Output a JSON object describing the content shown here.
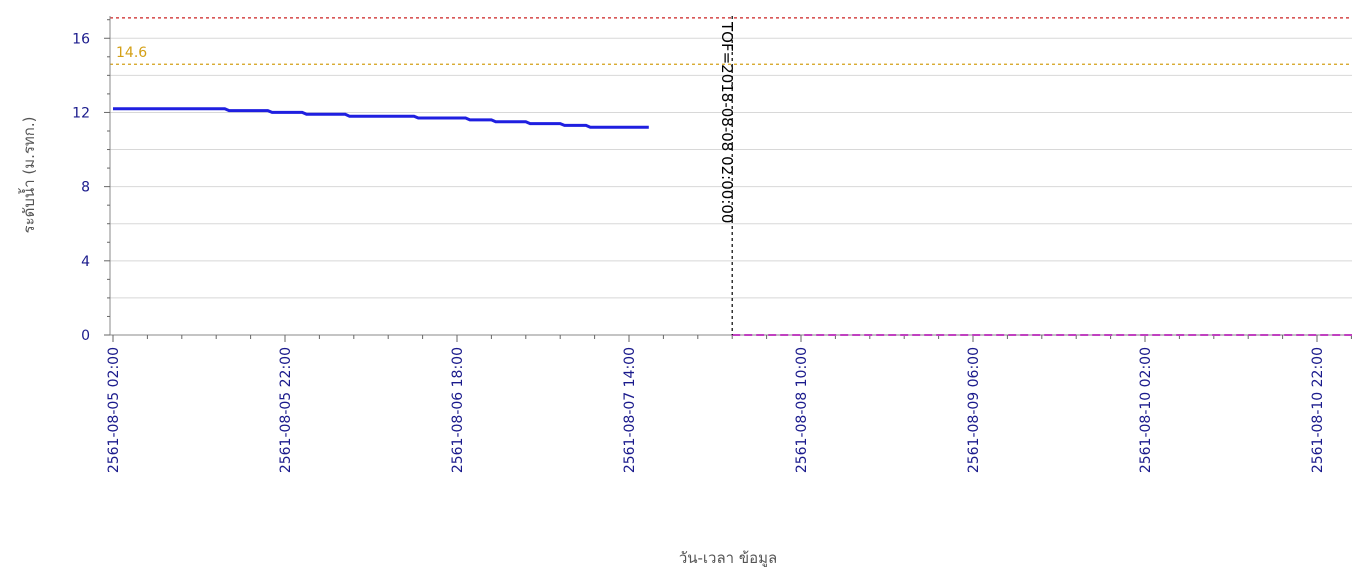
{
  "chart_data": {
    "type": "line",
    "ylabel": "ระดับน้ำ (ม.รทก.)",
    "xlabel": "วัน-เวลา ข้อมูล",
    "ylim": [
      0,
      17.2
    ],
    "yticks": [
      0,
      4,
      8,
      12,
      16
    ],
    "xlim_hours": [
      0,
      148
    ],
    "grid": true,
    "xticks": [
      {
        "hour": 0,
        "label": "2561-08-05 02:00"
      },
      {
        "hour": 20,
        "label": "2561-08-05 22:00"
      },
      {
        "hour": 40,
        "label": "2561-08-06 18:00"
      },
      {
        "hour": 60,
        "label": "2561-08-07 14:00"
      },
      {
        "hour": 80,
        "label": "2561-08-08 10:00"
      },
      {
        "hour": 100,
        "label": "2561-08-09 06:00"
      },
      {
        "hour": 120,
        "label": "2561-08-10 02:00"
      },
      {
        "hour": 140,
        "label": "2561-08-10 22:00"
      }
    ],
    "series": [
      {
        "color": "#1f1fe0",
        "points": [
          [
            0,
            12.2
          ],
          [
            13,
            12.2
          ],
          [
            13.5,
            12.1
          ],
          [
            18,
            12.1
          ],
          [
            18.5,
            12.0
          ],
          [
            22,
            12.0
          ],
          [
            22.5,
            11.9
          ],
          [
            27,
            11.9
          ],
          [
            27.5,
            11.8
          ],
          [
            35,
            11.8
          ],
          [
            35.5,
            11.7
          ],
          [
            41,
            11.7
          ],
          [
            41.5,
            11.6
          ],
          [
            44,
            11.6
          ],
          [
            44.5,
            11.5
          ],
          [
            48,
            11.5
          ],
          [
            48.5,
            11.4
          ],
          [
            52,
            11.4
          ],
          [
            52.5,
            11.3
          ],
          [
            55,
            11.3
          ],
          [
            55.5,
            11.2
          ],
          [
            62.3,
            11.2
          ]
        ]
      }
    ],
    "thresholds": [
      {
        "value": 17.1,
        "color": "#cc2222",
        "label": ""
      },
      {
        "value": 14.6,
        "color": "#d4a017",
        "label": "14.6"
      }
    ],
    "tof_line": {
      "hour": 72,
      "label": "TOF=2018-08-08 02:00:00"
    },
    "forecast_line": {
      "from_hour": 72,
      "to_hour": 148,
      "value": 0,
      "color": "#c040c0"
    }
  }
}
